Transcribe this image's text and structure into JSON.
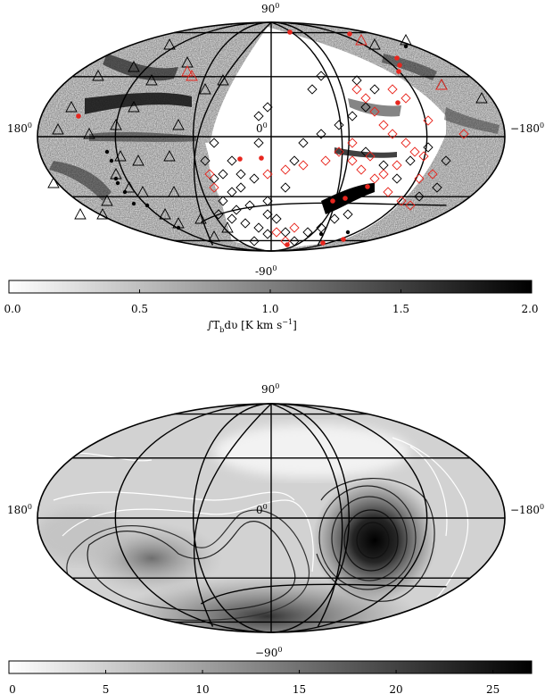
{
  "top_map": {
    "lat_top": "90",
    "lat_bottom": "-90",
    "lon_left": "180",
    "lon_right": "−180",
    "center": "0",
    "degree_mark": "0"
  },
  "top_colorbar": {
    "ticks": [
      "0.0",
      "0.5",
      "1.0",
      "1.5",
      "2.0"
    ],
    "min": 0,
    "max": 2,
    "label_int": "∫T",
    "label_sub": "b",
    "label_rest": "dυ  [K km s",
    "label_exp": "−1",
    "label_close": "]"
  },
  "bottom_map": {
    "lat_top": "90",
    "lat_bottom": "−90",
    "lon_left": "180",
    "lon_right": "−180",
    "center": "0",
    "degree_mark": "0"
  },
  "bottom_colorbar": {
    "ticks": [
      "0",
      "5",
      "10",
      "15",
      "20",
      "25"
    ],
    "min": 0,
    "max": 27
  },
  "colors": {
    "red_marker": "#e8261e",
    "black": "#000000"
  }
}
